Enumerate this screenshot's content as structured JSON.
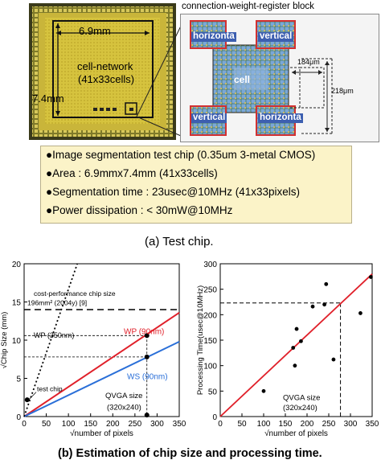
{
  "chip_photo": {
    "dim_width": "6.9mm",
    "dim_height": "7.4mm",
    "network_label_1": "cell-network",
    "network_label_2": "(41x33cells)"
  },
  "layout_inset": {
    "title": "connection-weight-register block",
    "block_horizontal_1": "horizonta",
    "block_vertical_1": "vertical",
    "block_vertical_2": "vertical",
    "block_horizontal_2": "horizonta",
    "cell_label": "cell",
    "dim_1": "184μm",
    "dim_2": "218μm"
  },
  "specs": {
    "items": [
      "Image segmentation test chip (0.35um 3-metal CMOS)",
      "Area : 6.9mmx7.4mm (41x33cells)",
      "Segmentation time : 23usec@10MHz (41x33pixels)",
      "Power dissipation : < 30mW@10MHz"
    ],
    "bullet": "●"
  },
  "caption_a": "(a) Test chip.",
  "caption_b": "(b) Estimation of chip size and processing time.",
  "colors": {
    "chip_gold": "#c8b63a",
    "spec_box": "#fbf3c8",
    "red_line": "#e0202a",
    "blue_line": "#2a6fd8",
    "block_blue": "#4a6fc0",
    "block_red": "#d24a4a"
  },
  "chart_data": [
    {
      "type": "line",
      "ylabel": "√Chip Size (mm)",
      "xlabel": "√number of pixels",
      "xlim": [
        0,
        350
      ],
      "ylim": [
        0,
        20
      ],
      "x_ticks": [
        "0",
        "50",
        "100",
        "150",
        "200",
        "250",
        "300",
        "350"
      ],
      "y_ticks": [
        "0",
        "5",
        "10",
        "15",
        "20"
      ],
      "series": [
        {
          "name": "WP (90nm)",
          "x": [
            0,
            350
          ],
          "y": [
            0,
            13.6
          ]
        },
        {
          "name": "WS (90nm)",
          "x": [
            0,
            350
          ],
          "y": [
            0,
            9.8
          ]
        },
        {
          "name": "WP (350nm)",
          "x": [
            0,
            120
          ],
          "y": [
            0,
            20
          ]
        }
      ],
      "points": [
        {
          "label": "test chip",
          "x": 6.9,
          "y": 2.2
        },
        {
          "x": 277,
          "y": 10.6
        },
        {
          "x": 277,
          "y": 7.8
        },
        {
          "x": 277,
          "y": 0.2
        }
      ],
      "hlines": [
        {
          "y": 14.0,
          "label": "cost-performance chip size"
        },
        {
          "y": 10.6
        },
        {
          "y": 7.8
        }
      ],
      "vline_x": 277,
      "annotations": {
        "cost_title": "cost-performance chip size",
        "cost_sub": "196mm² (2004y) [9]",
        "wp_350": "WP (350nm)",
        "wp_90": "WP (90nm)",
        "ws_90": "WS (90nm)",
        "test_chip": "test chip",
        "qvga_1": "QVGA size",
        "qvga_2": "(320x240)"
      }
    },
    {
      "type": "scatter",
      "ylabel": "Processing Time(usec@10MHz)",
      "xlabel": "√number of pixels",
      "xlim": [
        0,
        350
      ],
      "ylim": [
        0,
        300
      ],
      "x_ticks": [
        "0",
        "50",
        "100",
        "150",
        "200",
        "250",
        "300",
        "350"
      ],
      "y_ticks": [
        "0",
        "50",
        "100",
        "150",
        "200",
        "250",
        "300"
      ],
      "fit_line": {
        "x": [
          0,
          350
        ],
        "y": [
          0,
          280
        ]
      },
      "points": [
        {
          "x": 100,
          "y": 50
        },
        {
          "x": 168,
          "y": 135
        },
        {
          "x": 172,
          "y": 100
        },
        {
          "x": 176,
          "y": 172
        },
        {
          "x": 186,
          "y": 148
        },
        {
          "x": 213,
          "y": 216
        },
        {
          "x": 240,
          "y": 220
        },
        {
          "x": 244,
          "y": 260
        },
        {
          "x": 261,
          "y": 112
        },
        {
          "x": 323,
          "y": 203
        },
        {
          "x": 347,
          "y": 274
        }
      ],
      "hline_y": 223,
      "vline_x": 277,
      "annotations": {
        "qvga_1": "QVGA size",
        "qvga_2": "(320x240)"
      }
    }
  ]
}
